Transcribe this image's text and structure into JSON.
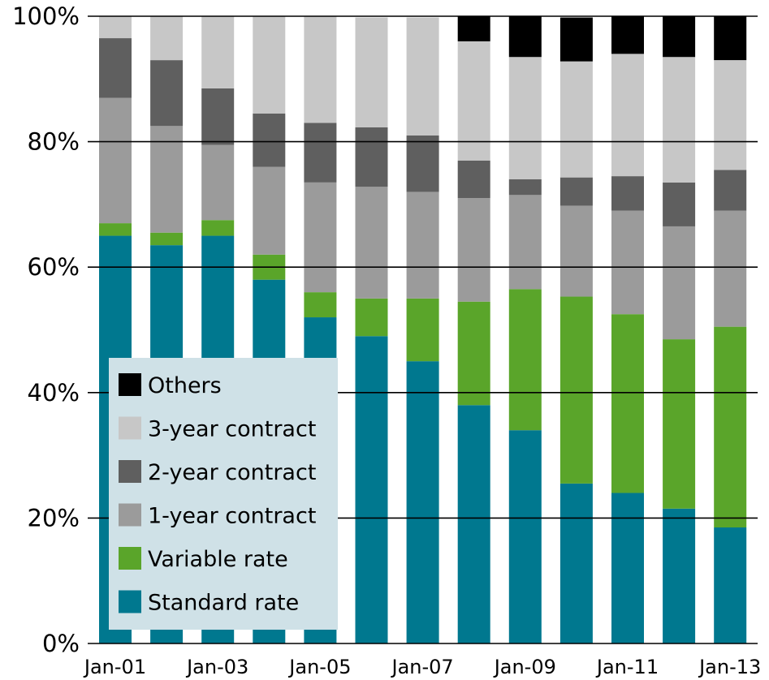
{
  "chart_data": {
    "type": "bar",
    "stacked": true,
    "categories": [
      "Jan-01",
      "Jan-02",
      "Jan-03",
      "Jan-04",
      "Jan-05",
      "Jan-06",
      "Jan-07",
      "Jan-08",
      "Jan-09",
      "Jan-10",
      "Jan-11",
      "Jan-12",
      "Jan-13"
    ],
    "x_tick_labels": [
      "Jan-01",
      "",
      "Jan-03",
      "",
      "Jan-05",
      "",
      "Jan-07",
      "",
      "Jan-09",
      "",
      "Jan-11",
      "",
      "Jan-13"
    ],
    "y_tick_labels": [
      "0%",
      "20%",
      "40%",
      "60%",
      "80%",
      "100%"
    ],
    "ylim": [
      0,
      100
    ],
    "grid": true,
    "legend_position": "bottom-left",
    "series": [
      {
        "name": "Standard rate",
        "color": "#00788f",
        "values": [
          65,
          63.5,
          65,
          58,
          52,
          49,
          45,
          38,
          34,
          25.5,
          24,
          21.5,
          18.5
        ]
      },
      {
        "name": "Variable rate",
        "color": "#5aa52a",
        "values": [
          2,
          2,
          2.5,
          4,
          4,
          6,
          10,
          16.5,
          22.5,
          29.8,
          28.5,
          27,
          32
        ]
      },
      {
        "name": "1-year contract",
        "color": "#9b9b9b",
        "values": [
          20,
          17,
          12,
          14,
          17.5,
          17.8,
          17,
          16.5,
          15,
          14.5,
          16.5,
          18,
          18.5
        ]
      },
      {
        "name": "2-year contract",
        "color": "#5f5f5f",
        "values": [
          9.5,
          10.5,
          9,
          8.5,
          9.5,
          9.5,
          9,
          6,
          2.5,
          4.5,
          5.5,
          7,
          6.5
        ]
      },
      {
        "name": "3-year contract",
        "color": "#c7c7c7",
        "values": [
          3.5,
          7,
          11.5,
          15.5,
          17,
          17.5,
          18.8,
          19,
          19.5,
          18.5,
          19.5,
          20,
          17.5
        ]
      },
      {
        "name": "Others",
        "color": "#000000",
        "values": [
          0,
          0,
          0,
          0,
          0,
          0,
          0,
          4,
          6.5,
          7,
          6,
          6.5,
          7
        ]
      }
    ]
  },
  "legend": {
    "background": "#cfe1e7",
    "items_top_to_bottom": [
      "Others",
      "3-year contract",
      "2-year contract",
      "1-year contract",
      "Variable rate",
      "Standard rate"
    ]
  }
}
